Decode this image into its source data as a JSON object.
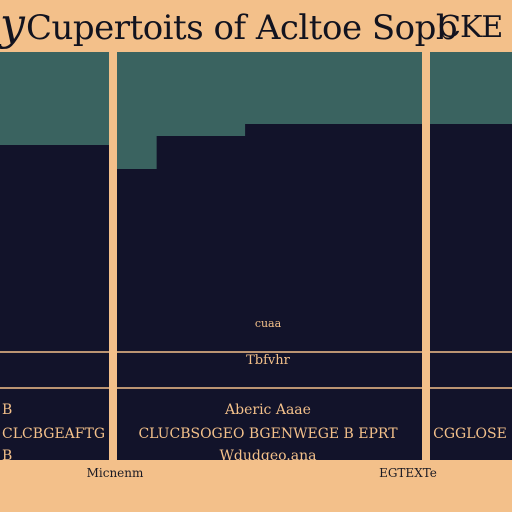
{
  "title": {
    "left_glyph": "y",
    "main": "Cupertoits of Acltoe Sopb",
    "right": "CKE"
  },
  "colors": {
    "background": "#f3c08a",
    "area_light": "#3a6360",
    "area_dark": "#12132a",
    "rule": "#f3c08a",
    "text_dark": "#12131f"
  },
  "chart_data": {
    "type": "area",
    "title": "Cupertoits of Acltoe Sopb CKE",
    "panels": [
      {
        "steps": [
          {
            "x": 0,
            "y": 62
          },
          {
            "x": 0.78,
            "y": 62
          }
        ]
      },
      {
        "steps": [
          {
            "x": 0,
            "y": 78
          },
          {
            "x": 0.13,
            "y": 78
          },
          {
            "x": 0.13,
            "y": 56
          },
          {
            "x": 0.42,
            "y": 56
          },
          {
            "x": 0.42,
            "y": 48
          }
        ]
      },
      {
        "steps": [
          {
            "x": 0,
            "y": 48
          }
        ]
      }
    ],
    "labels": [
      "cuaa",
      "Tbfvhr",
      "Aberic Aaae",
      "CLUCBSOGEO BGENWEGE B EPRT",
      "Wdudgeo.ana"
    ],
    "left_labels": [
      "B",
      "CLCBGEAFTG",
      "B"
    ],
    "right_labels": [
      "CGGLOSE"
    ],
    "footer": [
      "Micnenm",
      "EGTEXTe"
    ]
  }
}
